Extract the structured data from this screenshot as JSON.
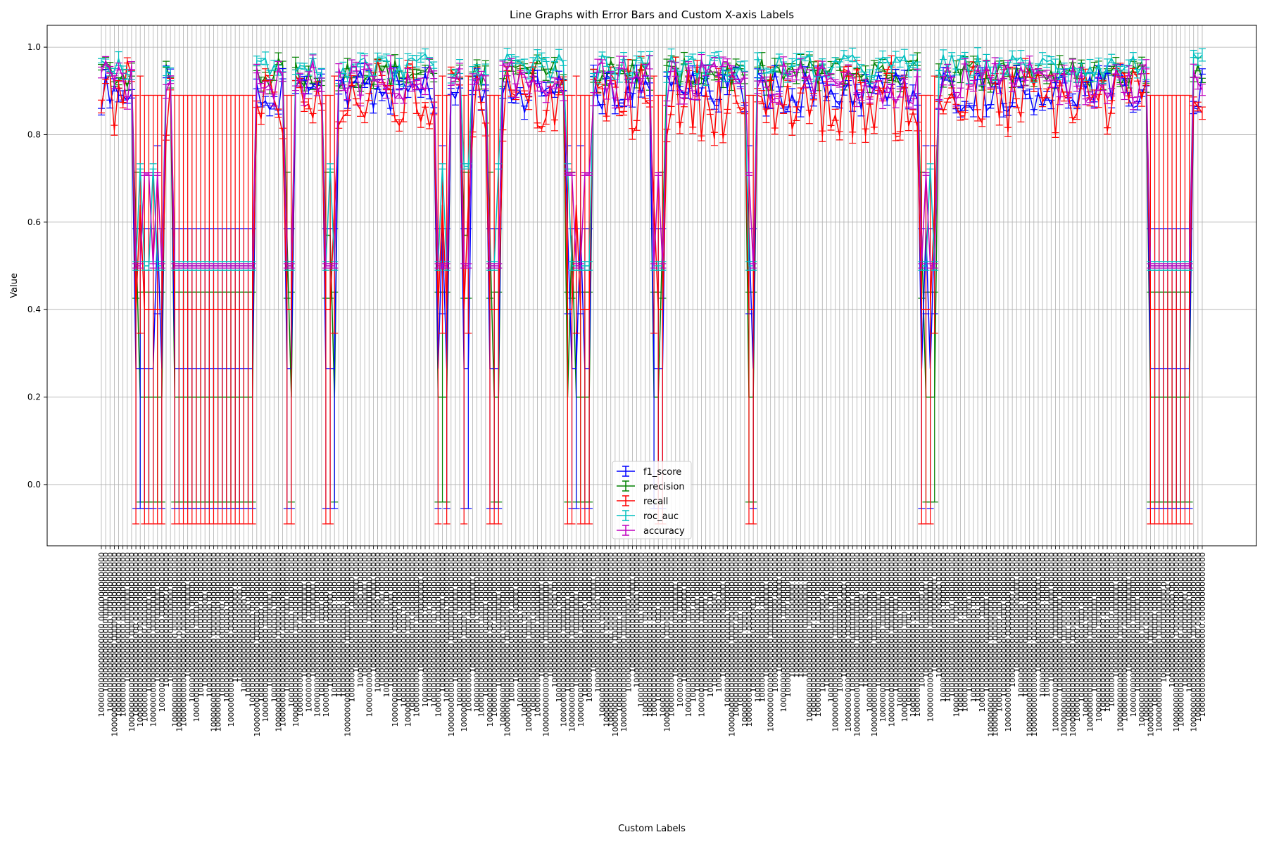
{
  "chart_data": {
    "type": "line",
    "title": "Line Graphs with Error Bars and Custom X-axis Labels",
    "xlabel": "Custom Labels",
    "ylabel": "Value",
    "ylim": [
      -0.14,
      1.05
    ],
    "yticks": [
      0.0,
      0.2,
      0.4,
      0.6,
      0.8,
      1.0
    ],
    "ytick_labels": [
      "0.0",
      "0.2",
      "0.4",
      "0.6",
      "0.8",
      "1.0"
    ],
    "x_tick_label_sample": "1000000000000000000.00000",
    "grid": true,
    "legend_position": "lower center",
    "point_count": 256,
    "dip_segments": [
      {
        "start": 8,
        "end": 14,
        "depth": 0.55
      },
      {
        "start": 17,
        "end": 35,
        "depth": 1.0
      },
      {
        "start": 43,
        "end": 44,
        "depth": 0.55
      },
      {
        "start": 52,
        "end": 54,
        "depth": 0.55
      },
      {
        "start": 78,
        "end": 80,
        "depth": 0.55
      },
      {
        "start": 84,
        "end": 85,
        "depth": 0.55
      },
      {
        "start": 90,
        "end": 92,
        "depth": 0.55
      },
      {
        "start": 108,
        "end": 110,
        "depth": 0.55
      },
      {
        "start": 111,
        "end": 113,
        "depth": 0.55
      },
      {
        "start": 128,
        "end": 130,
        "depth": 0.55
      },
      {
        "start": 150,
        "end": 151,
        "depth": 0.55
      },
      {
        "start": 190,
        "end": 193,
        "depth": 0.55
      },
      {
        "start": 243,
        "end": 252,
        "depth": 1.0
      }
    ],
    "series": [
      {
        "name": "f1_score",
        "color": "#0000ff",
        "base": 0.9,
        "noise": 0.05,
        "dip_value": 0.265,
        "dip_err": 0.32
      },
      {
        "name": "precision",
        "color": "#008000",
        "base": 0.94,
        "noise": 0.035,
        "dip_value": 0.2,
        "dip_err": 0.24
      },
      {
        "name": "recall",
        "color": "#ff0000",
        "base": 0.88,
        "noise": 0.09,
        "dip_value": 0.4,
        "dip_err": 0.49
      },
      {
        "name": "roc_auc",
        "color": "#00bfbf",
        "base": 0.955,
        "noise": 0.03,
        "dip_value": 0.5,
        "dip_err": 0.01
      },
      {
        "name": "accuracy",
        "color": "#bf00bf",
        "base": 0.92,
        "noise": 0.05,
        "dip_value": 0.5,
        "dip_err": 0.005
      }
    ]
  }
}
